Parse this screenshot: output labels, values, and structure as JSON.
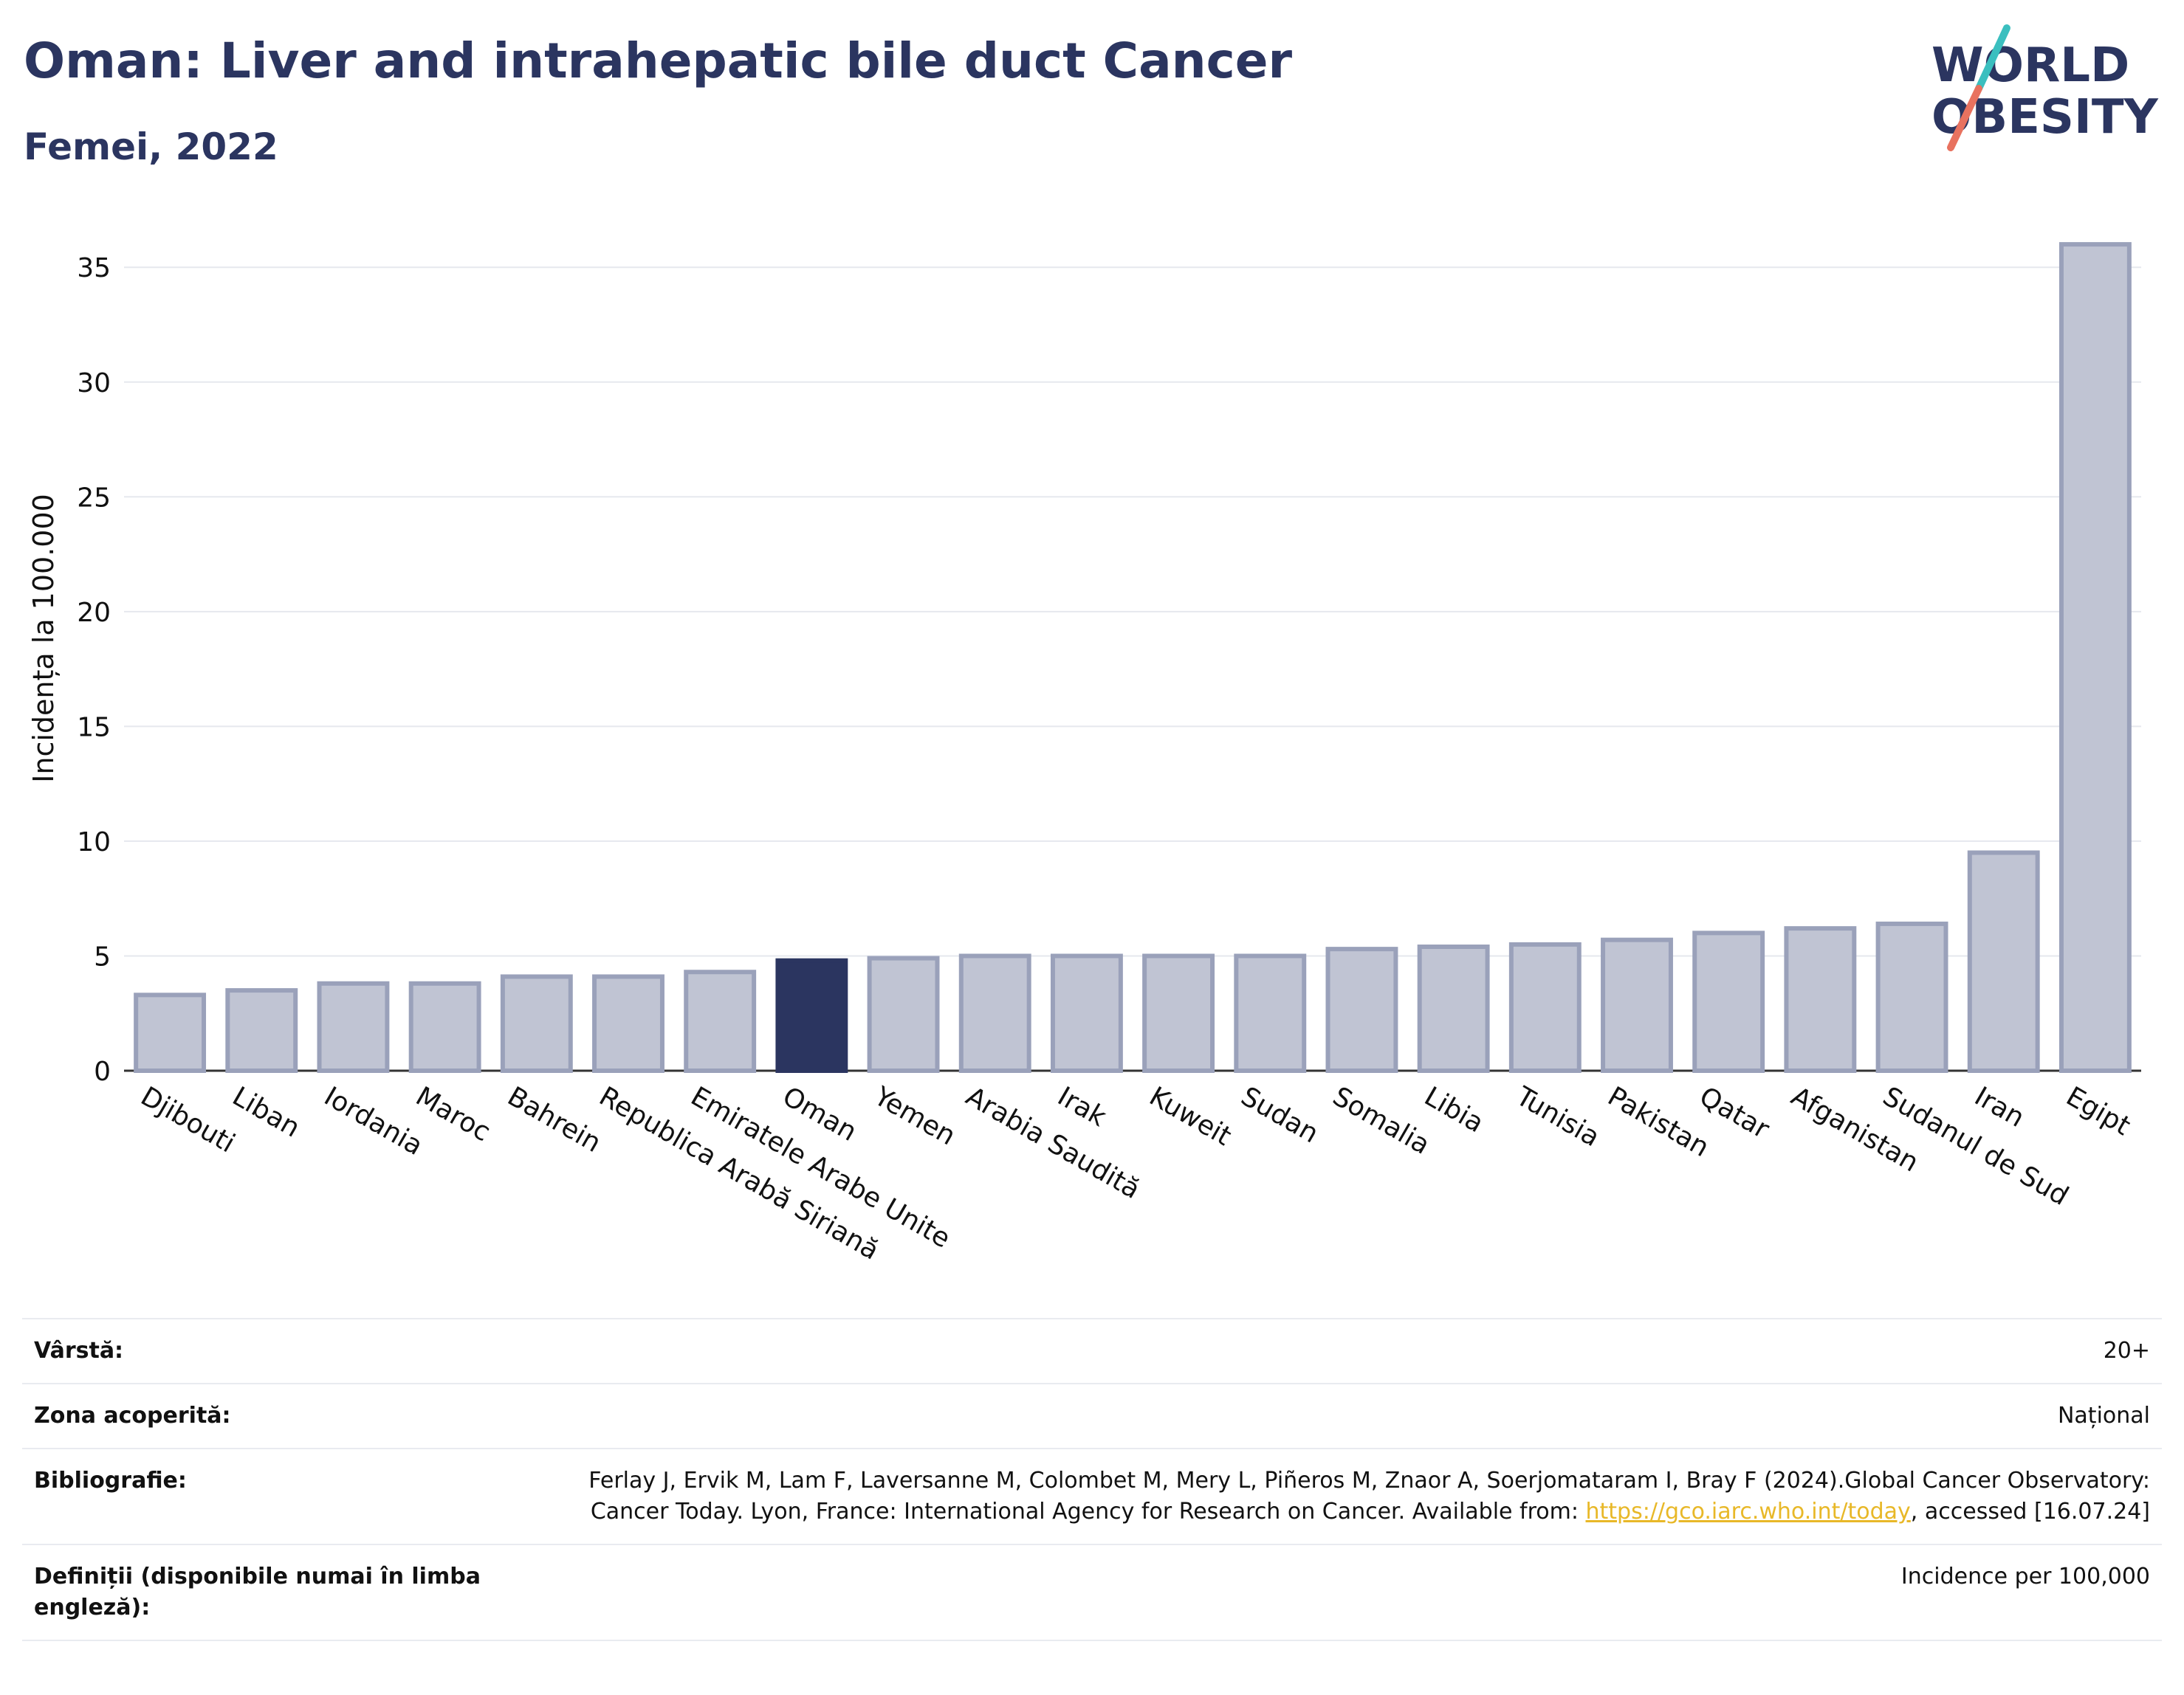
{
  "header": {
    "title": "Oman: Liver and intrahepatic bile duct Cancer",
    "subtitle": "Femei, 2022"
  },
  "logo": {
    "line1": "WORLD",
    "line2": "OBESITY",
    "accent_teal": "#3bbfbf",
    "accent_coral": "#e8725f"
  },
  "colors": {
    "bar": "#c0c4d3",
    "bar_border": "#9aa1ba",
    "highlight": "#2b3560",
    "grid": "#e6e8ee",
    "text": "#2b3560"
  },
  "chart_data": {
    "type": "bar",
    "ylabel": "Incidența la 100.000",
    "ylim": [
      0,
      37
    ],
    "yticks": [
      0,
      5,
      10,
      15,
      20,
      25,
      30,
      35
    ],
    "highlight": "Oman",
    "categories": [
      "Djibouti",
      "Liban",
      "Iordania",
      "Maroc",
      "Bahrein",
      "Republica Arabă Siriană",
      "Emiratele Arabe Unite",
      "Oman",
      "Yemen",
      "Arabia Saudită",
      "Irak",
      "Kuweit",
      "Sudan",
      "Somalia",
      "Libia",
      "Tunisia",
      "Pakistan",
      "Qatar",
      "Afganistan",
      "Sudanul de Sud",
      "Iran",
      "Egipt"
    ],
    "values": [
      3.3,
      3.5,
      3.8,
      3.8,
      4.1,
      4.1,
      4.3,
      4.8,
      4.9,
      5.0,
      5.0,
      5.0,
      5.0,
      5.3,
      5.4,
      5.5,
      5.7,
      6.0,
      6.2,
      6.4,
      9.5,
      36.0
    ]
  },
  "meta": [
    {
      "label": "Vârstă:",
      "value": "20+"
    },
    {
      "label": "Zona acoperită:",
      "value": "Național"
    },
    {
      "label": "Bibliografie:",
      "value_pre": "Ferlay J, Ervik M, Lam F, Laversanne M, Colombet M, Mery L, Piñeros M, Znaor A, Soerjomataram I, Bray F (2024).Global Cancer Observatory: Cancer Today. Lyon, France: International Agency for Research on Cancer. Available from: ",
      "link": "https://gco.iarc.who.int/today",
      "value_post": ", accessed [16.07.24]"
    },
    {
      "label": "Definiții (disponibile numai în limba engleză):",
      "value": "Incidence per 100,000"
    }
  ]
}
